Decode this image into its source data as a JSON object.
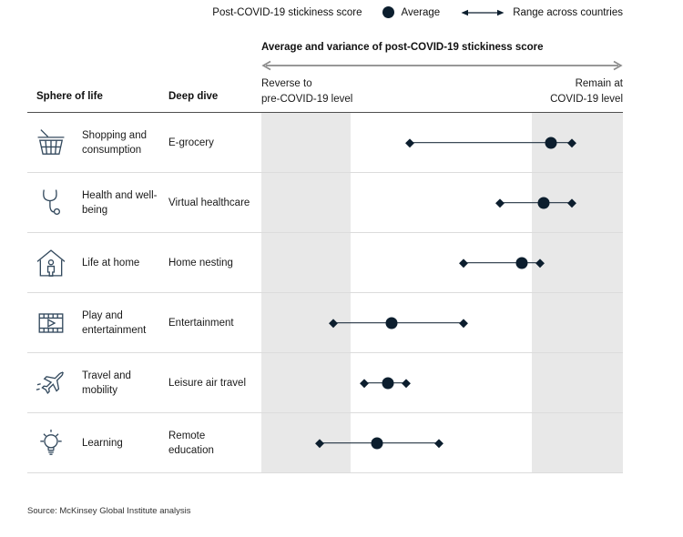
{
  "colors": {
    "accent": "#0c1e2e",
    "band": "#e8e8e8",
    "axis_arrow": "#8a8a8a",
    "divider": "#dcdcdc",
    "header_line": "#4f4f4f",
    "icon": "#344a5e"
  },
  "legend": {
    "score_label": "Post-COVID-19 stickiness score",
    "average_label": "Average",
    "range_label": "Range across countries"
  },
  "chart_header": {
    "title": "Average and variance of post-COVID-19 stickiness score",
    "left_label_line1": "Reverse to",
    "left_label_line2": "pre-COVID-19 level",
    "right_label_line1": "Remain at",
    "right_label_line2": "COVID-19 level"
  },
  "table": {
    "col1_header": "Sphere of life",
    "col2_header": "Deep dive"
  },
  "chart_data": {
    "type": "dot-range",
    "title": "Average and variance of post-COVID-19 stickiness score",
    "axis_min_label": "Reverse to pre-COVID-19 level",
    "axis_max_label": "Remain at COVID-19 level",
    "xlim": [
      0,
      1
    ],
    "legend": [
      "Average",
      "Range across countries"
    ],
    "bands": [
      {
        "from": 0,
        "to": 0.247
      },
      {
        "from": 0.748,
        "to": 1
      }
    ],
    "rows": [
      {
        "icon": "shopping-basket",
        "sphere": "Shopping and consumption",
        "deep_dive": "E-grocery",
        "min": 0.41,
        "avg": 0.8,
        "max": 0.86
      },
      {
        "icon": "stethoscope",
        "sphere": "Health and well-being",
        "deep_dive": "Virtual healthcare",
        "min": 0.66,
        "avg": 0.78,
        "max": 0.86
      },
      {
        "icon": "house-person",
        "sphere": "Life at home",
        "deep_dive": "Home nesting",
        "min": 0.56,
        "avg": 0.72,
        "max": 0.77
      },
      {
        "icon": "film-play",
        "sphere": "Play and entertainment",
        "deep_dive": "Entertainment",
        "min": 0.2,
        "avg": 0.36,
        "max": 0.56
      },
      {
        "icon": "airplane",
        "sphere": "Travel and mobility",
        "deep_dive": "Leisure air travel",
        "min": 0.285,
        "avg": 0.35,
        "max": 0.4
      },
      {
        "icon": "lightbulb",
        "sphere": "Learning",
        "deep_dive": "Remote education",
        "min": 0.16,
        "avg": 0.32,
        "max": 0.49
      }
    ]
  },
  "source": "Source: McKinsey Global Institute analysis"
}
